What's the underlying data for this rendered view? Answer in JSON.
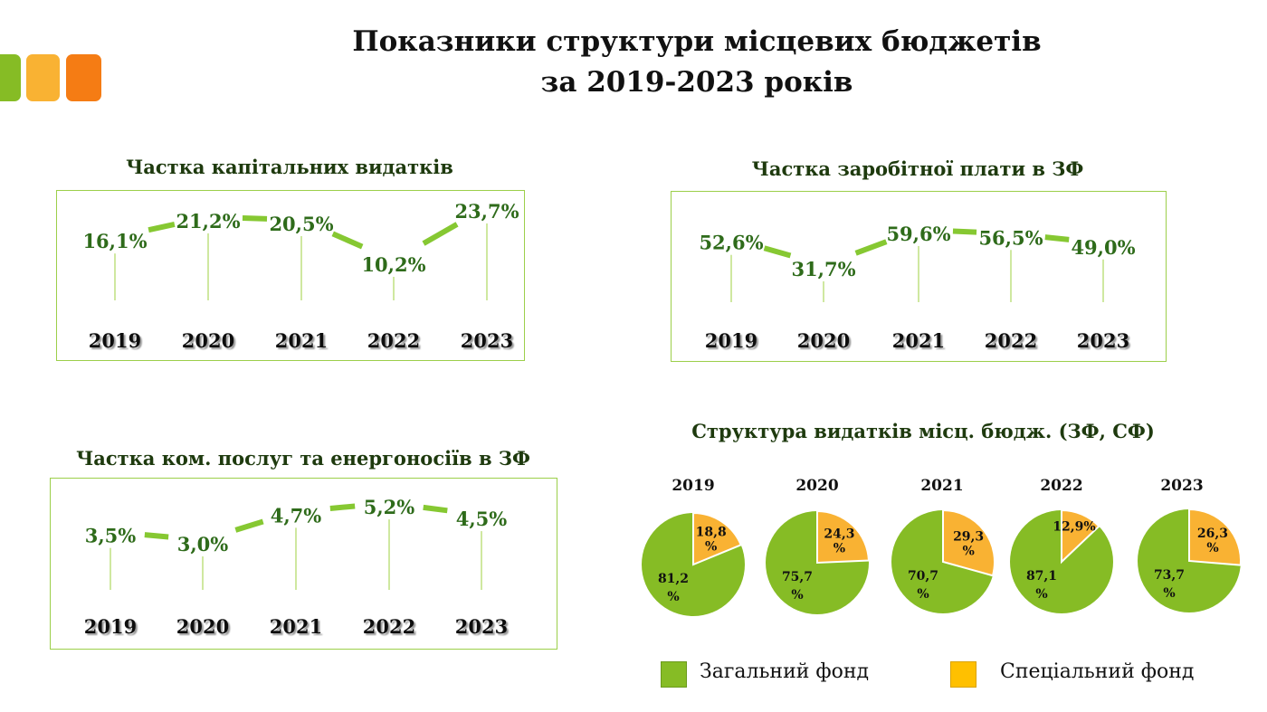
{
  "title_line1": "Показники структури місцевих бюджетів",
  "title_line2": "за 2019-2023 років",
  "colors": {
    "green": "#86bc25",
    "orange": "#f9b233",
    "deep_orange": "#f57c14",
    "text_green": "#2e6b1a",
    "legend_orange": "#ffc000"
  },
  "chart_data": [
    {
      "type": "line",
      "title": "Частка капітальних видатків",
      "categories": [
        "2019",
        "2020",
        "2021",
        "2022",
        "2023"
      ],
      "values": [
        16.1,
        21.2,
        20.5,
        10.2,
        23.7
      ],
      "labels": [
        "16,1%",
        "21,2%",
        "20,5%",
        "10,2%",
        "23,7%"
      ],
      "unit": "%"
    },
    {
      "type": "line",
      "title": "Частка заробітної плати в ЗФ",
      "categories": [
        "2019",
        "2020",
        "2021",
        "2022",
        "2023"
      ],
      "values": [
        52.6,
        31.7,
        59.6,
        56.5,
        49.0
      ],
      "labels": [
        "52,6%",
        "31,7%",
        "59,6%",
        "56,5%",
        "49,0%"
      ],
      "unit": "%"
    },
    {
      "type": "line",
      "title": "Частка ком. послуг та енергоносіїв в ЗФ",
      "categories": [
        "2019",
        "2020",
        "2021",
        "2022",
        "2023"
      ],
      "values": [
        3.5,
        3.0,
        4.7,
        5.2,
        4.5
      ],
      "labels": [
        "3,5%",
        "3,0%",
        "4,7%",
        "5,2%",
        "4,5%"
      ],
      "unit": "%"
    },
    {
      "type": "pie",
      "title": "Структура видатків місц. бюдж. (ЗФ, СФ)",
      "legend": [
        "Загальний фонд",
        "Спеціальний фонд"
      ],
      "pies": [
        {
          "year": "2019",
          "general": 81.2,
          "special": 18.8,
          "general_label": "81,2 %",
          "special_label": "18,8 %"
        },
        {
          "year": "2020",
          "general": 75.7,
          "special": 24.3,
          "general_label": "75,7 %",
          "special_label": "24,3 %"
        },
        {
          "year": "2021",
          "general": 70.7,
          "special": 29.3,
          "general_label": "70,7 %",
          "special_label": "29,3 %"
        },
        {
          "year": "2022",
          "general": 87.1,
          "special": 12.9,
          "general_label": "87,1 %",
          "special_label": "12,9%"
        },
        {
          "year": "2023",
          "general": 73.7,
          "special": 26.3,
          "general_label": "73,7 %",
          "special_label": "26,3 %"
        }
      ]
    }
  ]
}
